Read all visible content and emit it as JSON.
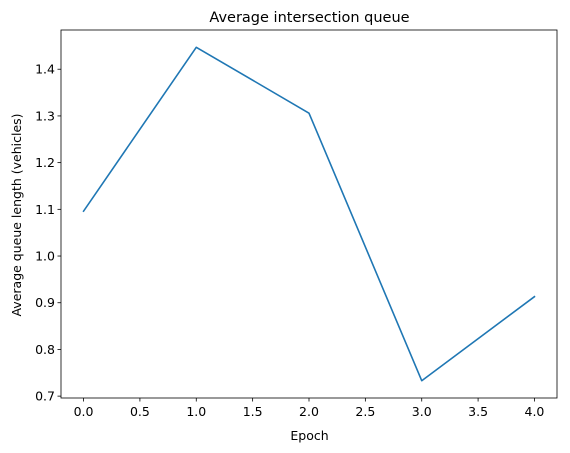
{
  "chart_data": {
    "type": "line",
    "title": "Average intersection queue",
    "xlabel": "Epoch",
    "ylabel": "Average queue length (vehicles)",
    "x": [
      0,
      1,
      2,
      3,
      4
    ],
    "series": [
      {
        "values": [
          1.096,
          1.447,
          1.306,
          0.733,
          0.913
        ],
        "color": "#1f77b4"
      }
    ],
    "xlim": [
      -0.2,
      4.2
    ],
    "ylim": [
      0.696,
      1.484
    ],
    "xticks": [
      0.0,
      0.5,
      1.0,
      1.5,
      2.0,
      2.5,
      3.0,
      3.5,
      4.0
    ],
    "xtick_labels": [
      "0.0",
      "0.5",
      "1.0",
      "1.5",
      "2.0",
      "2.5",
      "3.0",
      "3.5",
      "4.0"
    ],
    "yticks": [
      0.7,
      0.8,
      0.9,
      1.0,
      1.1,
      1.2,
      1.3,
      1.4
    ],
    "ytick_labels": [
      "0.7",
      "0.8",
      "0.9",
      "1.0",
      "1.1",
      "1.2",
      "1.3",
      "1.4"
    ],
    "grid": false,
    "legend": "none"
  }
}
